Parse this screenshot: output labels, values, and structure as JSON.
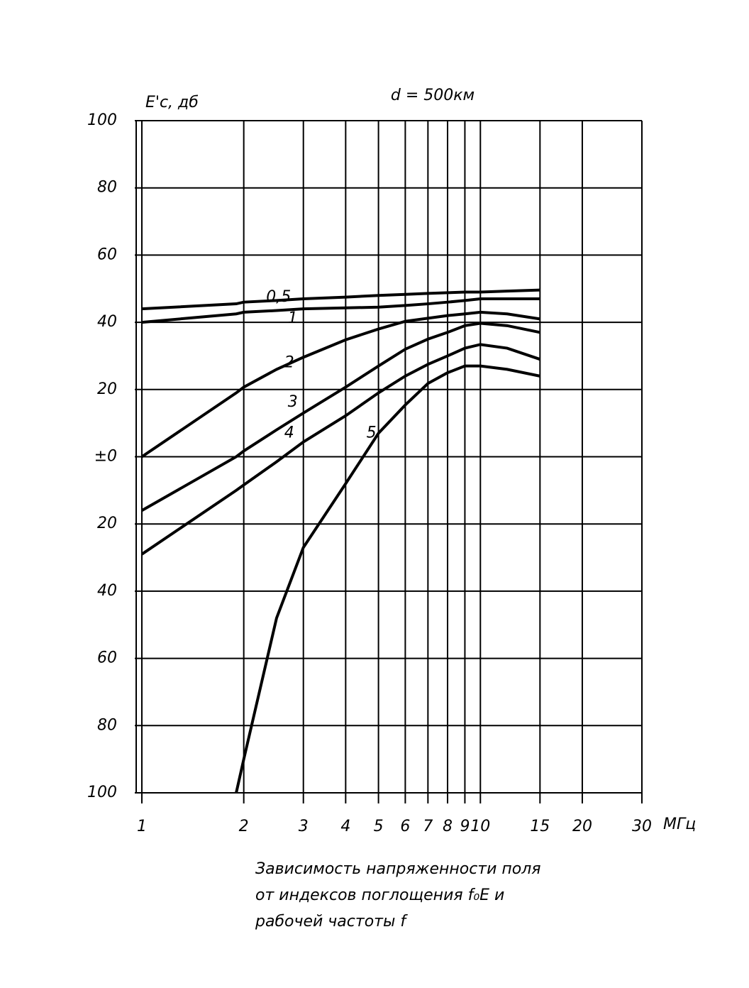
{
  "chart_data": {
    "type": "line",
    "title": "d = 500км",
    "y_label": "E'c, дб",
    "x_unit": "МГц",
    "caption": [
      "Зависимость напряженности поля",
      "от индексов поглощения f₀E и",
      "рабочей частоты f"
    ],
    "x": [
      1,
      1.9,
      2,
      2.5,
      3,
      4,
      5,
      6,
      7,
      8,
      9,
      10,
      12,
      15
    ],
    "series": [
      {
        "name": "0,5",
        "color": "#000000",
        "values": [
          44,
          45.5,
          46,
          46.5,
          47,
          47.5,
          48,
          48.3,
          48.6,
          48.8,
          49,
          49,
          49.3,
          49.6
        ]
      },
      {
        "name": "1",
        "color": "#000000",
        "values": [
          40,
          42.5,
          43,
          43.5,
          44,
          44.3,
          44.5,
          45,
          45.5,
          46,
          46.5,
          47,
          47,
          47
        ]
      },
      {
        "name": "2",
        "color": "#000000",
        "values": [
          0,
          19,
          20.7,
          26,
          29.6,
          34.8,
          38,
          40.3,
          41.2,
          42,
          42.5,
          43,
          42.5,
          41
        ]
      },
      {
        "name": "3",
        "color": "#000000",
        "values": [
          -16,
          0,
          1.7,
          8,
          13,
          20.7,
          27,
          32,
          35,
          37,
          39,
          39.7,
          39,
          37
        ]
      },
      {
        "name": "4",
        "color": "#000000",
        "values": [
          -29,
          -10,
          -8.4,
          -1.5,
          4.4,
          12.2,
          19,
          24,
          27.5,
          30,
          32.3,
          33.4,
          32.3,
          29
        ]
      },
      {
        "name": "5",
        "color": "#000000",
        "values": [
          null,
          -100,
          -90,
          -48,
          -27,
          -8,
          7,
          15.4,
          21.8,
          25,
          27,
          27,
          26,
          24
        ]
      }
    ],
    "xlim": [
      1,
      30
    ],
    "xscale": "log",
    "xticks": [
      1,
      2,
      3,
      4,
      5,
      6,
      7,
      8,
      9,
      10,
      15,
      20,
      30
    ],
    "ylim": [
      -100,
      100
    ],
    "yticks": [
      {
        "value": -100,
        "label": "100"
      },
      {
        "value": -80,
        "label": "80"
      },
      {
        "value": -60,
        "label": "60"
      },
      {
        "value": -40,
        "label": "40"
      },
      {
        "value": -20,
        "label": "20"
      },
      {
        "value": 0,
        "label": "±0"
      },
      20,
      40,
      60,
      80,
      100
    ],
    "grid": true
  }
}
